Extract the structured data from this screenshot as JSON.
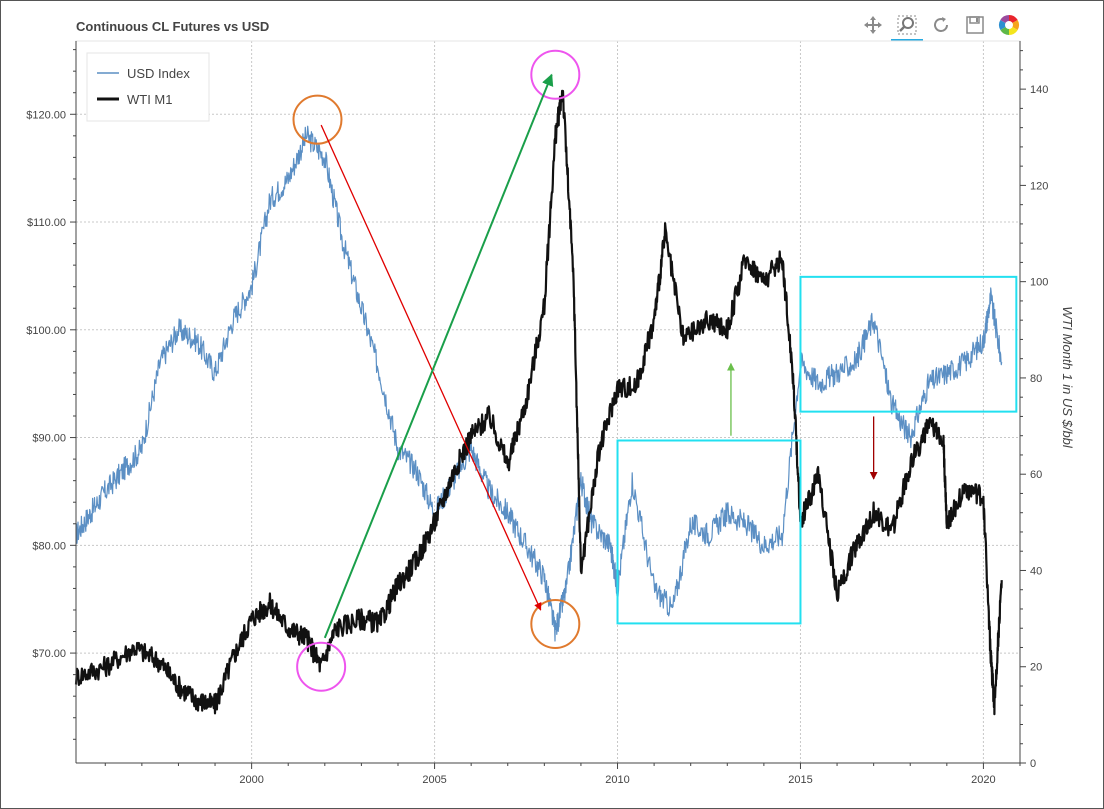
{
  "window": {
    "title": "Continuous CL Futures vs USD"
  },
  "toolbar": {
    "tools": [
      {
        "name": "pan-tool",
        "icon": "pan-icon",
        "active": false
      },
      {
        "name": "box-zoom-tool",
        "icon": "zoom-icon",
        "active": true
      },
      {
        "name": "reset-tool",
        "icon": "reset-icon",
        "active": false
      },
      {
        "name": "save-tool",
        "icon": "save-icon",
        "active": false
      },
      {
        "name": "bokeh-logo",
        "icon": "bokeh-logo-icon",
        "active": false
      }
    ]
  },
  "chart_data": {
    "type": "line",
    "title": "Continuous CL Futures vs USD",
    "xlabel": "",
    "ylabel_left": "",
    "ylabel_right": "WTI Month 1 in US $/bbl",
    "xlim": [
      1995.2,
      2021.0
    ],
    "ylim_left": [
      59.8,
      126.8
    ],
    "ylim_right": [
      0,
      150
    ],
    "x_ticks": [
      "2000",
      "2005",
      "2010",
      "2015",
      "2020"
    ],
    "y_left_ticks": [
      "$70.00",
      "$80.00",
      "$90.00",
      "$100.00",
      "$110.00",
      "$120.00"
    ],
    "y_right_ticks": [
      "0",
      "20",
      "40",
      "60",
      "80",
      "100",
      "120",
      "140"
    ],
    "grid": true,
    "legend_position": "top-left",
    "series": [
      {
        "name": "USD Index",
        "axis": "left",
        "color": "#5b8fc4",
        "x": [
          1995.2,
          1995.6,
          1996.0,
          1996.5,
          1997.0,
          1997.5,
          1998.0,
          1998.5,
          1999.0,
          1999.5,
          2000.0,
          2000.5,
          2001.0,
          2001.5,
          2002.0,
          2002.5,
          2003.0,
          2003.5,
          2004.0,
          2004.5,
          2005.0,
          2005.5,
          2006.0,
          2006.5,
          2007.0,
          2007.5,
          2008.0,
          2008.3,
          2008.6,
          2009.0,
          2009.3,
          2009.8,
          2010.0,
          2010.4,
          2011.0,
          2011.5,
          2012.0,
          2012.5,
          2013.0,
          2013.5,
          2014.0,
          2014.5,
          2015.0,
          2015.5,
          2016.0,
          2016.5,
          2017.0,
          2017.5,
          2018.0,
          2018.5,
          2019.0,
          2019.5,
          2020.0,
          2020.2,
          2020.5
        ],
        "values": [
          81,
          83,
          85,
          87,
          89,
          97,
          100,
          99,
          96,
          101,
          104,
          112,
          114,
          118,
          116,
          108,
          102,
          96,
          89,
          87,
          83,
          86,
          89,
          85,
          83,
          80,
          77,
          72,
          76,
          86,
          82,
          80,
          76,
          86,
          76,
          74,
          82,
          81,
          83,
          82,
          80,
          81,
          97,
          95,
          96,
          97,
          101,
          93,
          90,
          95,
          96,
          97,
          99,
          103,
          97
        ]
      },
      {
        "name": "WTI M1",
        "axis": "right",
        "color": "#111111",
        "x": [
          1995.2,
          1996.0,
          1996.8,
          1997.5,
          1998.0,
          1998.5,
          1999.0,
          1999.5,
          2000.0,
          2000.5,
          2001.0,
          2001.5,
          2001.9,
          2002.3,
          2003.0,
          2003.5,
          2004.0,
          2004.5,
          2005.0,
          2005.5,
          2006.0,
          2006.5,
          2007.0,
          2007.5,
          2008.0,
          2008.3,
          2008.5,
          2008.8,
          2009.0,
          2009.5,
          2010.0,
          2010.5,
          2011.0,
          2011.3,
          2011.8,
          2012.5,
          2013.0,
          2013.5,
          2014.0,
          2014.5,
          2014.8,
          2015.0,
          2015.5,
          2016.0,
          2016.5,
          2017.0,
          2017.5,
          2018.0,
          2018.5,
          2018.9,
          2019.0,
          2019.5,
          2020.0,
          2020.2,
          2020.3,
          2020.5
        ],
        "values": [
          18,
          20,
          24,
          21,
          16,
          13,
          12,
          22,
          30,
          33,
          28,
          26,
          20,
          28,
          30,
          29,
          37,
          42,
          50,
          60,
          68,
          72,
          62,
          75,
          95,
          130,
          140,
          100,
          40,
          65,
          78,
          78,
          92,
          110,
          88,
          92,
          90,
          105,
          100,
          105,
          80,
          50,
          60,
          35,
          45,
          52,
          48,
          62,
          70,
          68,
          50,
          57,
          55,
          22,
          12,
          38
        ]
      }
    ],
    "annotations": [
      {
        "type": "circle",
        "color": "#e07a2e",
        "x": 2001.8,
        "y_axis": "left",
        "y": 119.5
      },
      {
        "type": "circle",
        "color": "#ee55ee",
        "x": 2001.9,
        "y_axis": "right",
        "y": 20
      },
      {
        "type": "circle",
        "color": "#ee55ee",
        "x": 2008.3,
        "y_axis": "right",
        "y": 143
      },
      {
        "type": "circle",
        "color": "#e07a2e",
        "x": 2008.3,
        "y_axis": "left",
        "y": 72.7
      },
      {
        "type": "arrow",
        "color": "#e00000",
        "from": [
          2001.9,
          119
        ],
        "to": [
          2007.9,
          74
        ],
        "y_axis": "left"
      },
      {
        "type": "arrow",
        "color": "#1a9f4a",
        "from": [
          2002.0,
          26
        ],
        "to": [
          2008.2,
          143
        ],
        "y_axis": "right"
      },
      {
        "type": "arrow",
        "color": "#6abf4b",
        "from": [
          2013.1,
          68
        ],
        "to": [
          2013.1,
          83
        ],
        "y_axis": "right"
      },
      {
        "type": "arrow",
        "color": "#a00000",
        "from": [
          2017.0,
          72
        ],
        "to": [
          2017.0,
          59
        ],
        "y_axis": "right"
      },
      {
        "type": "box",
        "color": "#22e0f0",
        "x0": 2010.0,
        "x1": 2015.0,
        "y0_right": 29,
        "y1_right": 67
      },
      {
        "type": "box",
        "color": "#22e0f0",
        "x0": 2015.0,
        "x1": 2020.9,
        "y0_right": 73,
        "y1_right": 101
      }
    ]
  }
}
